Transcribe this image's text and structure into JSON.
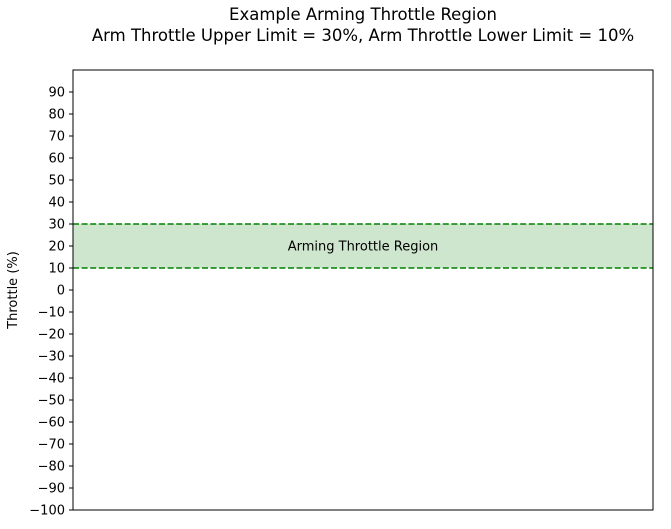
{
  "chart_data": {
    "type": "area",
    "title": "Example Arming Throttle Region",
    "subtitle": "Arm Throttle Upper Limit = 30%, Arm Throttle Lower Limit = 10%",
    "xlabel": "",
    "ylabel": "Throttle (%)",
    "ylim": [
      -100,
      100
    ],
    "yticks": [
      -100,
      -90,
      -80,
      -70,
      -60,
      -50,
      -40,
      -30,
      -20,
      -10,
      0,
      10,
      20,
      30,
      40,
      50,
      60,
      70,
      80,
      90
    ],
    "grid": false,
    "region": {
      "label": "Arming Throttle Region",
      "lower": 10,
      "upper": 30,
      "fill_color": "#cde6cd",
      "line_color": "#008000"
    }
  }
}
